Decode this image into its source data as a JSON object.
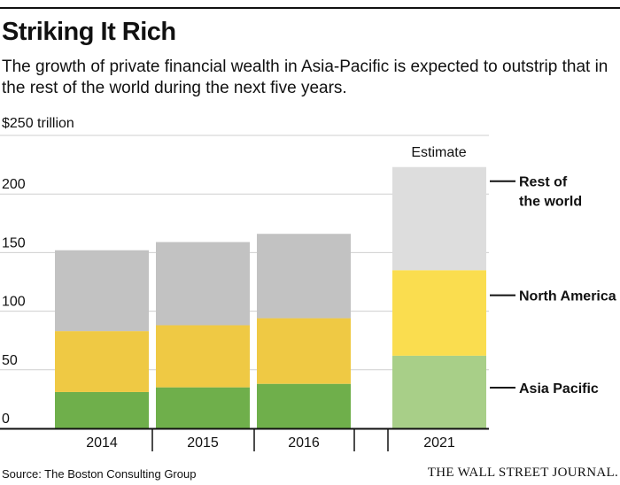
{
  "title": "Striking It Rich",
  "subtitle": "The growth of private financial wealth in Asia-Pacific is expected to outstrip that in the rest of the world during the next five years.",
  "unit_label": "$250 trillion",
  "estimate_label": "Estimate",
  "source": "Source: The Boston Consulting Group",
  "publisher": "THE WALL STREET JOURNAL.",
  "chart_data": {
    "type": "bar",
    "stacked": true,
    "title": "Striking It Rich",
    "ylabel": "$ trillion",
    "ylim": [
      0,
      250
    ],
    "yticks": [
      0,
      50,
      100,
      150,
      200,
      250
    ],
    "ytick_labels": [
      "0",
      "50",
      "100",
      "150",
      "200",
      "$250 trillion"
    ],
    "grid": true,
    "categories": [
      "2014",
      "2015",
      "2016",
      "2021"
    ],
    "estimate_categories": [
      "2021"
    ],
    "series": [
      {
        "name": "Asia Pacific",
        "values": [
          31,
          35,
          38,
          62
        ],
        "color": "#6faf4b",
        "estimate_color": "#a8cf88"
      },
      {
        "name": "North America",
        "values": [
          52,
          53,
          56,
          73
        ],
        "color": "#efc944",
        "estimate_color": "#fadd4f"
      },
      {
        "name": "Rest of the world",
        "values": [
          69,
          71,
          72,
          88
        ],
        "color": "#c2c2c2",
        "estimate_color": "#dddddd"
      }
    ],
    "legend_labels": [
      {
        "series": "Rest of the world",
        "lines": [
          "Rest of",
          "the world"
        ]
      },
      {
        "series": "North America",
        "lines": [
          "North America"
        ]
      },
      {
        "series": "Asia Pacific",
        "lines": [
          "Asia Pacific"
        ]
      }
    ]
  }
}
